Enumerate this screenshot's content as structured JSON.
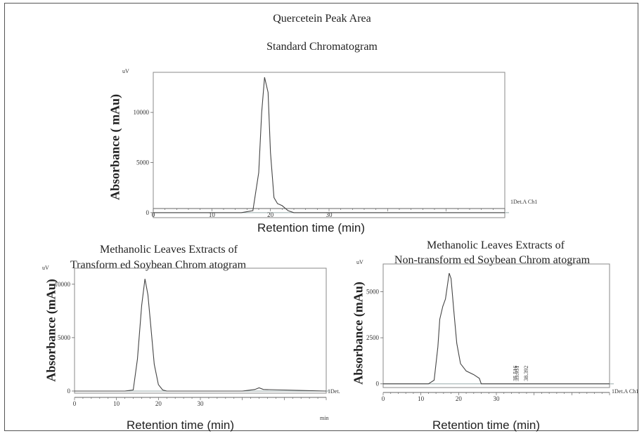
{
  "figure": {
    "title": "Quercetein Peak Area",
    "panels": [
      {
        "id": "standard",
        "title_lines": [
          "Standard Chromatogram"
        ],
        "xlabel": "Retention time (min)",
        "ylabel": "Absorbance ( mAu)",
        "yunit": "uV",
        "detector_label": "1Det.A Ch1",
        "xticks": [
          "0",
          "10",
          "20",
          "30"
        ],
        "yticks": [
          "0",
          "5000",
          "10000"
        ]
      },
      {
        "id": "transformed",
        "title_lines": [
          "Methanolic Leaves Extracts of",
          "Transform ed Soybean Chrom atogram"
        ],
        "xlabel": "Retention time (min)",
        "ylabel": "Absorbance (mAu)",
        "yunit": "uV",
        "detector_label": "1Det.",
        "x_end_label": "min",
        "xticks": [
          "0",
          "10",
          "20",
          "30"
        ],
        "yticks": [
          "0",
          "5000",
          "10000"
        ]
      },
      {
        "id": "nontransformed",
        "title_lines": [
          "Methanolic Leaves Extracts of",
          "Non-transform ed Soybean Chrom atogram"
        ],
        "xlabel": "Retention time (min)",
        "ylabel": "Absorbance (mAu)",
        "yunit": "uV",
        "detector_label": "1Det.A Ch1",
        "xticks": [
          "0",
          "10",
          "20",
          "30"
        ],
        "yticks": [
          "0",
          "2500",
          "5000"
        ],
        "peak_labels": [
          "35.516",
          "35.951",
          "38.392"
        ]
      }
    ]
  },
  "chart_data": [
    {
      "type": "line",
      "title": "Standard Chromatogram",
      "xlabel": "Retention time (min)",
      "ylabel": "Absorbance ( mAu)",
      "xlim": [
        0,
        60
      ],
      "ylim": [
        -500,
        14000
      ],
      "grid": false,
      "series": [
        {
          "x": [
            0,
            15,
            17,
            18,
            18.5,
            19,
            19.6,
            20,
            20.6,
            21.2,
            22,
            23,
            24,
            30,
            40,
            50,
            60
          ],
          "y": [
            0,
            0,
            200,
            4000,
            10000,
            13500,
            12000,
            6000,
            1500,
            900,
            700,
            200,
            0,
            0,
            0,
            0,
            0
          ]
        }
      ]
    },
    {
      "type": "line",
      "title": "Methanolic Leaves Extracts of Transform ed Soybean Chrom atogram",
      "xlabel": "Retention time (min)",
      "ylabel": "Absorbance (mAu)",
      "xlim": [
        0,
        60
      ],
      "ylim": [
        -200,
        11500
      ],
      "grid": false,
      "series": [
        {
          "x": [
            0,
            12,
            14,
            15,
            16,
            16.8,
            17.5,
            18.2,
            19,
            20,
            21,
            22,
            30,
            40,
            43,
            44,
            45,
            60
          ],
          "y": [
            0,
            0,
            100,
            3000,
            8000,
            10500,
            9000,
            6000,
            2500,
            600,
            100,
            0,
            0,
            0,
            150,
            300,
            150,
            0
          ]
        }
      ]
    },
    {
      "type": "line",
      "title": "Methanolic Leaves Extracts of Non-transform ed Soybean Chrom atogram",
      "xlabel": "Retention time (min)",
      "ylabel": "Absorbance (mAu)",
      "xlim": [
        0,
        60
      ],
      "ylim": [
        -200,
        6500
      ],
      "grid": false,
      "series": [
        {
          "x": [
            0,
            12,
            13.5,
            14.5,
            15,
            15.8,
            16.5,
            17.5,
            18,
            18.7,
            19.5,
            20.5,
            22,
            24,
            25.5,
            26,
            30,
            40,
            60
          ],
          "y": [
            0,
            0,
            200,
            2000,
            3500,
            4200,
            4600,
            6000,
            5700,
            4000,
            2200,
            1100,
            700,
            500,
            300,
            0,
            0,
            0,
            0
          ]
        }
      ]
    }
  ]
}
